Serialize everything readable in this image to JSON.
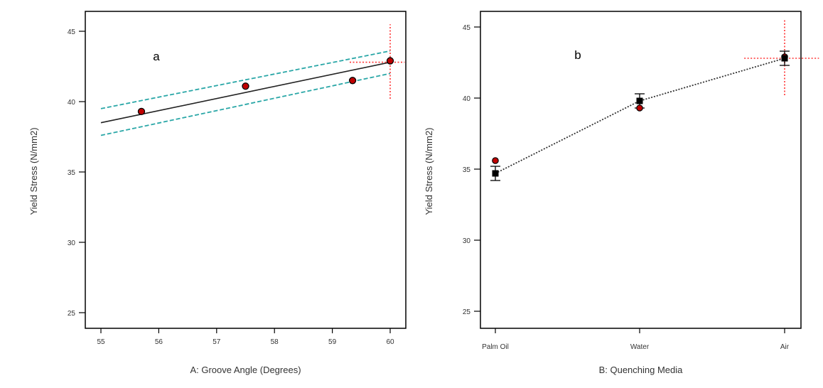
{
  "chart_data": [
    {
      "type": "line",
      "panel_label": "a",
      "xlabel": "A: Groove Angle (Degrees)",
      "ylabel": "Yield Stress (N/mm2)",
      "xlim": [
        55,
        60
      ],
      "ylim": [
        25,
        45
      ],
      "x_ticks": [
        55,
        56,
        57,
        58,
        59,
        60
      ],
      "y_ticks": [
        25,
        30,
        35,
        40,
        45
      ],
      "fit_line": {
        "x": [
          55,
          60
        ],
        "y": [
          38.5,
          42.8
        ]
      },
      "confidence_band": {
        "upper": {
          "x": [
            55,
            60
          ],
          "y": [
            39.5,
            43.6
          ]
        },
        "lower": {
          "x": [
            55,
            60
          ],
          "y": [
            37.6,
            42.0
          ]
        }
      },
      "points": {
        "x": [
          55.7,
          57.5,
          59.35,
          60
        ],
        "y": [
          39.3,
          41.1,
          41.5,
          42.9
        ]
      },
      "crosshair": {
        "x": 60,
        "y": 42.8,
        "y_range": [
          40.2,
          45.5
        ],
        "x_range": [
          59.3,
          60.25
        ]
      },
      "colors": {
        "fit": "#222222",
        "band": "#2aa7a7",
        "point": "#c00000",
        "crosshair": "#ff3333"
      },
      "grid": false
    },
    {
      "type": "line",
      "panel_label": "b",
      "xlabel": "B: Quenching Media",
      "ylabel": "Yield Stress (N/mm2)",
      "ylim": [
        25,
        45
      ],
      "y_ticks": [
        25,
        30,
        35,
        40,
        45
      ],
      "categories": [
        "Palm Oil",
        "Water",
        "Air"
      ],
      "means": [
        34.7,
        39.8,
        42.8
      ],
      "error": [
        0.5,
        0.5,
        0.5
      ],
      "points": [
        35.6,
        39.3,
        42.9
      ],
      "crosshair": {
        "category_index": 2,
        "y": 42.8,
        "y_range": [
          40.2,
          45.6
        ],
        "x_halfspan": 0.28
      },
      "colors": {
        "mean": "#000000",
        "line": "#333333",
        "point": "#c00000",
        "crosshair": "#ff3333"
      },
      "grid": false
    }
  ]
}
